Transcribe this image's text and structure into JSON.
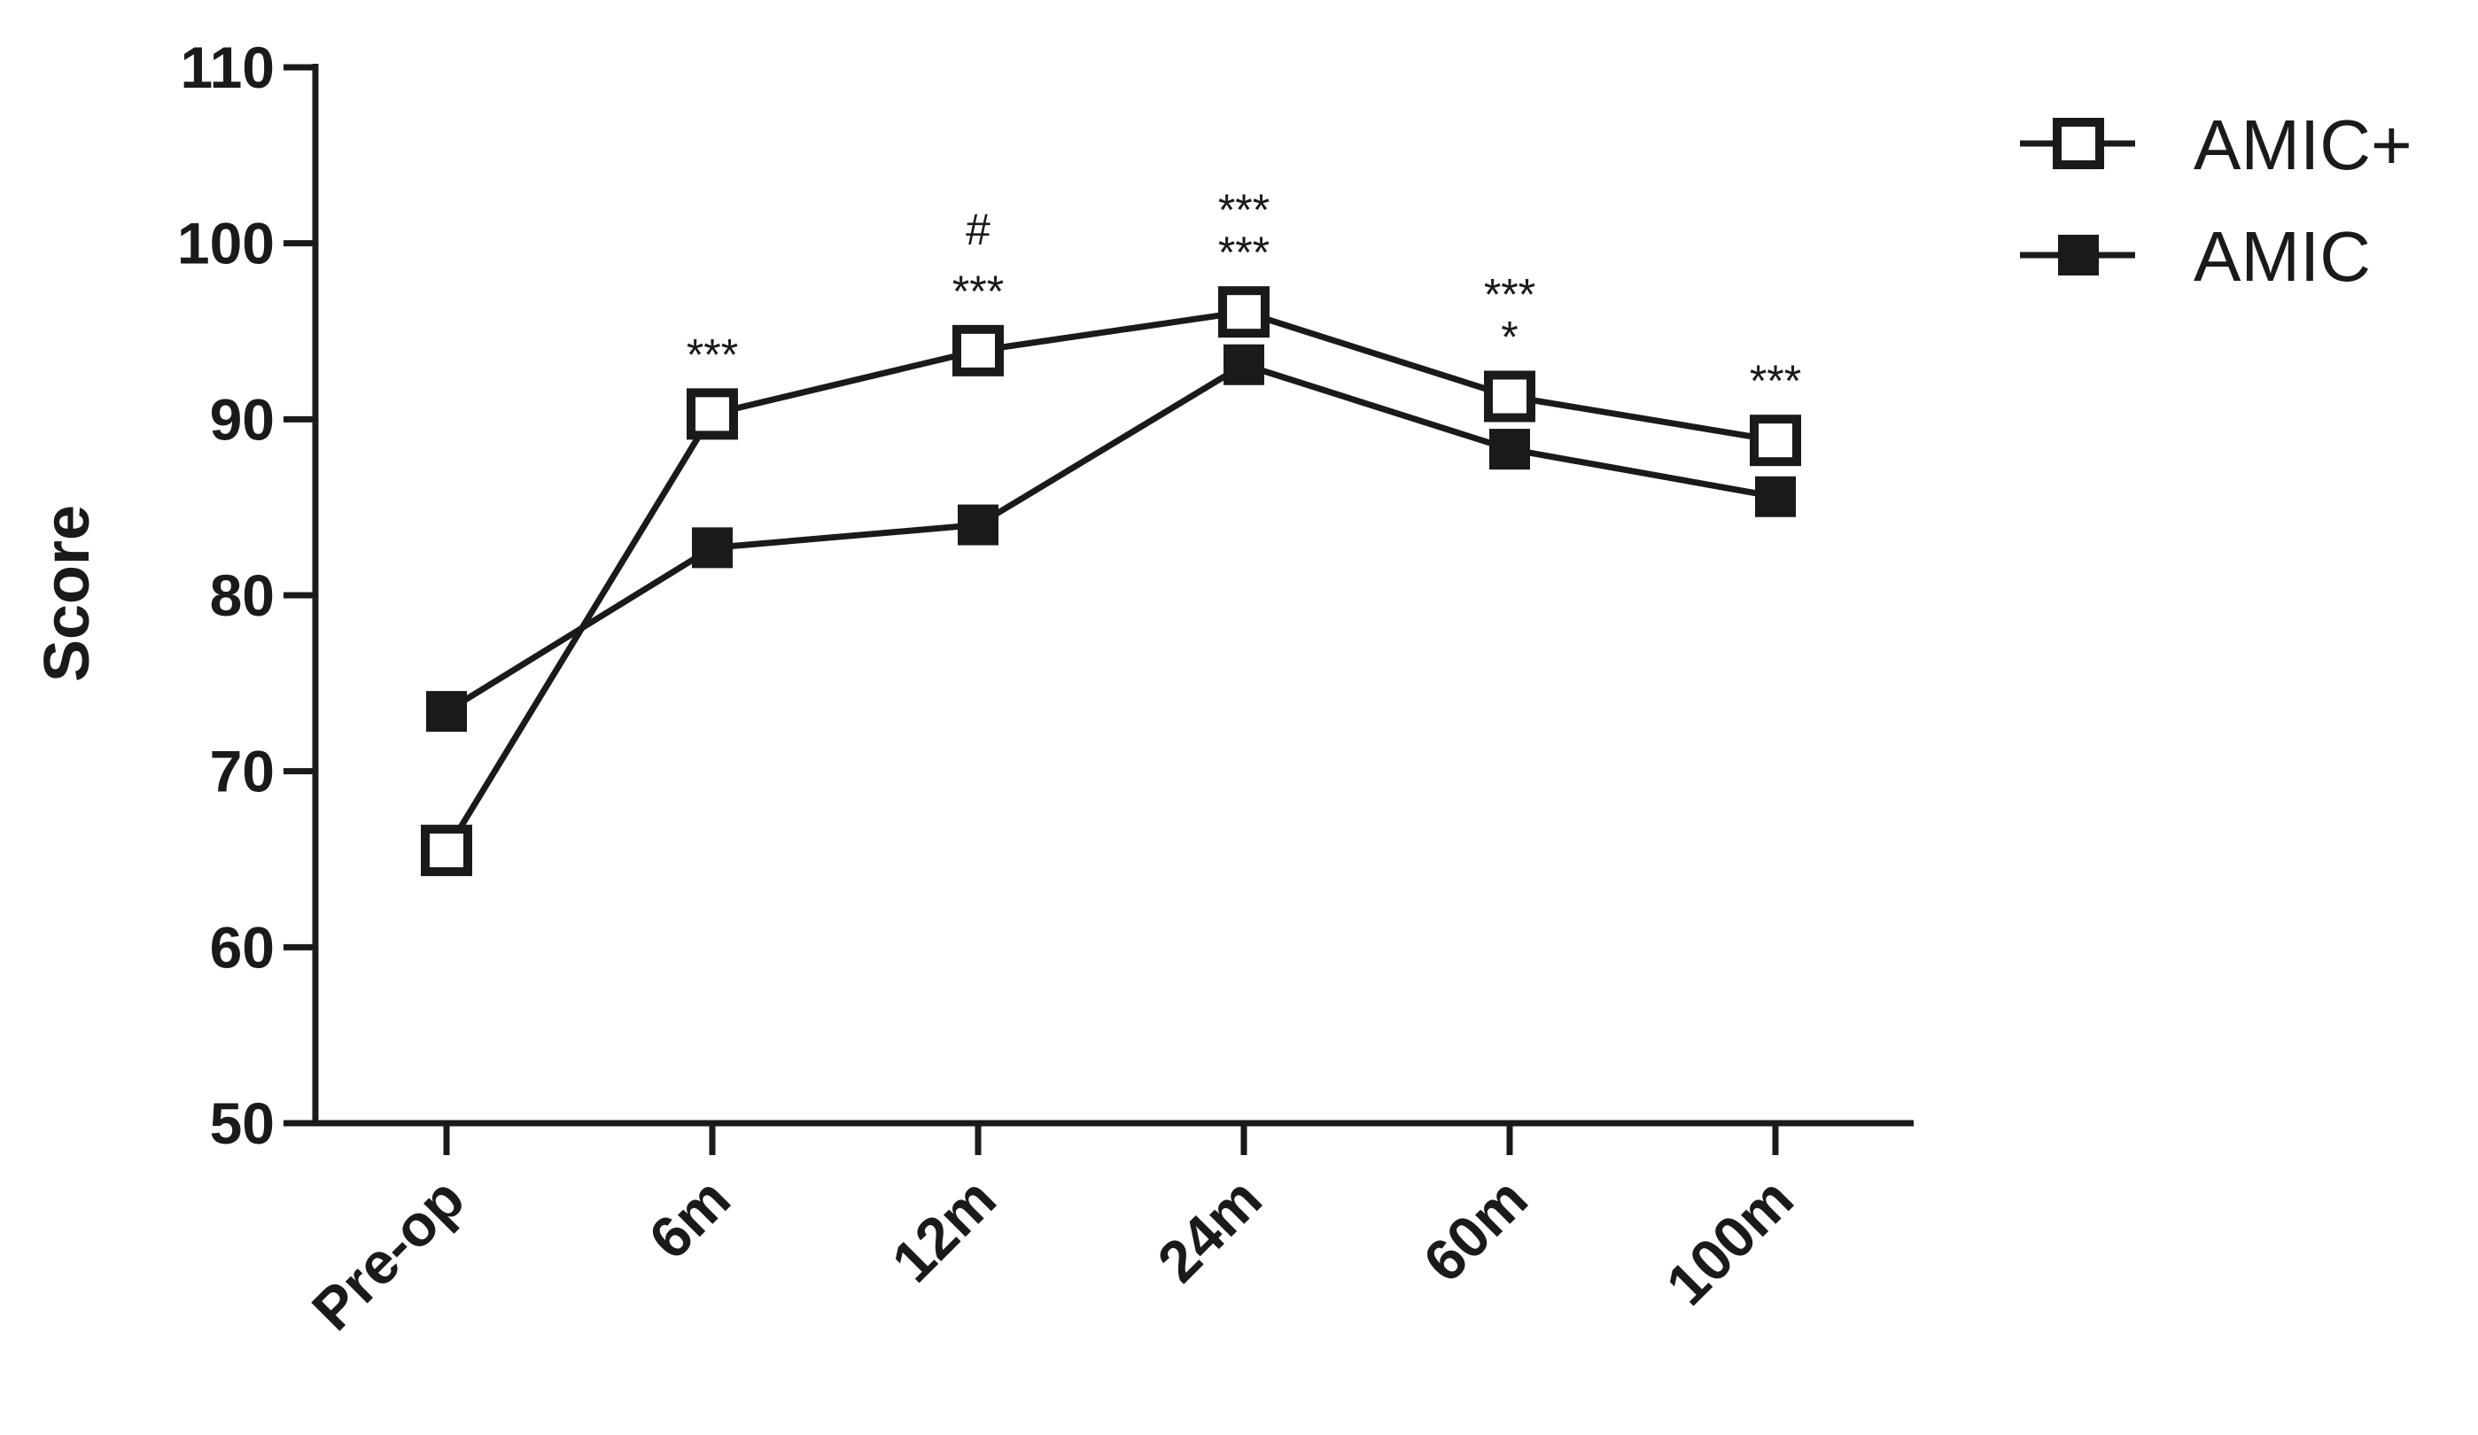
{
  "chart_data": {
    "type": "line",
    "title": "",
    "xlabel": "",
    "ylabel": "Score",
    "ylim": [
      50,
      110
    ],
    "yticks": [
      50,
      60,
      70,
      80,
      90,
      100,
      110
    ],
    "categories": [
      "Pre-op",
      "6m",
      "12m",
      "24m",
      "60m",
      "100m"
    ],
    "series": [
      {
        "name": "AMIC+",
        "marker": "open-square",
        "values": [
          65.5,
          90.3,
          93.9,
          96.1,
          91.3,
          88.8
        ]
      },
      {
        "name": "AMIC",
        "marker": "filled-square",
        "values": [
          73.4,
          82.7,
          84.0,
          93.1,
          88.3,
          85.6
        ]
      }
    ],
    "annotations": [
      {
        "category": "6m",
        "lines": [
          "***"
        ]
      },
      {
        "category": "12m",
        "lines": [
          "#",
          "***"
        ]
      },
      {
        "category": "24m",
        "lines": [
          "***",
          "***"
        ]
      },
      {
        "category": "60m",
        "lines": [
          "***",
          "*"
        ]
      },
      {
        "category": "100m",
        "lines": [
          "***"
        ]
      }
    ],
    "legend_position": "top-right",
    "grid": false,
    "colors": {
      "line": "#1a1a1a",
      "background": "#ffffff"
    }
  }
}
